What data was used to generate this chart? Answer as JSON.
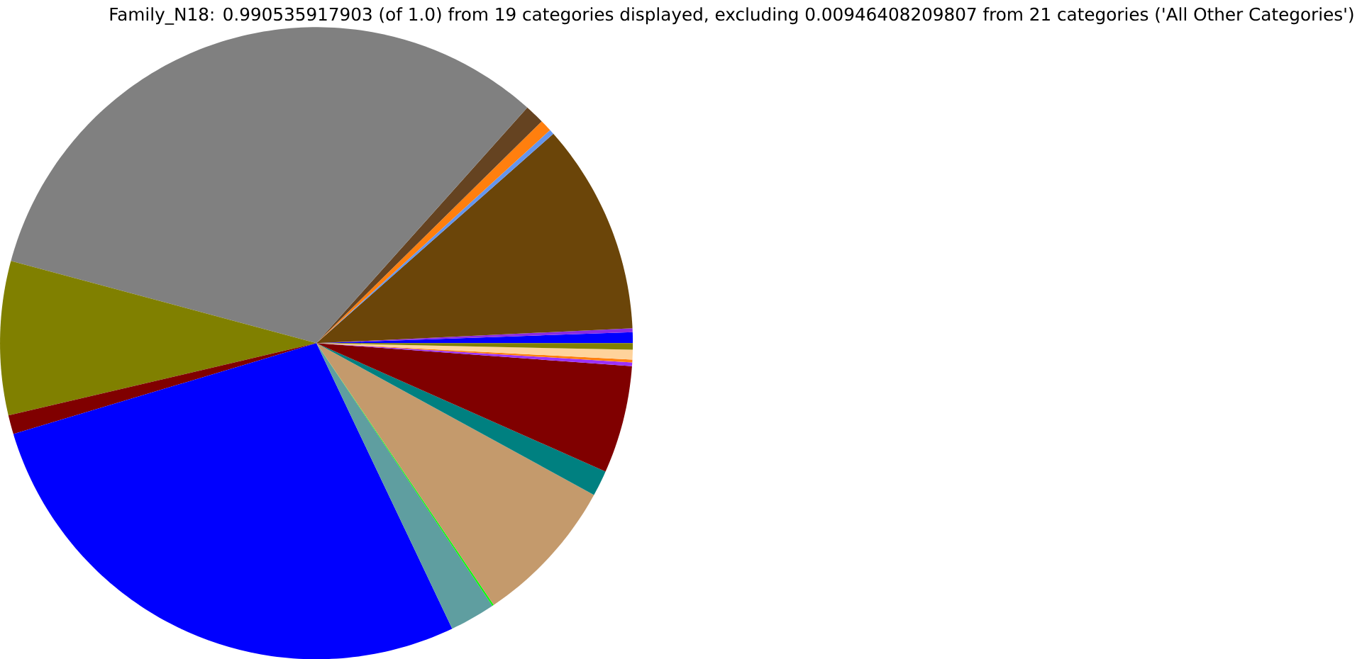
{
  "chart_data": {
    "type": "pie",
    "title": "Family_N18: 0.990535917903 (of 1.0) from 19 categories displayed, excluding 0.00946408209807 from 21 categories ('All Other Categories')",
    "categories": [
      null,
      null,
      null,
      null,
      null,
      null,
      null,
      null,
      null,
      null,
      null,
      null,
      null,
      null,
      null,
      null,
      null,
      null,
      null
    ],
    "values": [
      0.56,
      0.19,
      10.78,
      0.25,
      0.61,
      1.0,
      32.42,
      7.86,
      0.97,
      27.42,
      2.33,
      0.08,
      7.56,
      1.31,
      5.5,
      0.19,
      0.14,
      0.5,
      0.33
    ],
    "colors": [
      "#0000ff",
      "#8a2be2",
      "#6b4509",
      "#6495ed",
      "#ff7f0e",
      "#654321",
      "#808080",
      "#808000",
      "#800000",
      "#0000ff",
      "#5f9ea0",
      "#00ff00",
      "#c49a6c",
      "#008080",
      "#800000",
      "#9b30ff",
      "#ff7f0e",
      "#ffd39b",
      "#808000"
    ]
  }
}
